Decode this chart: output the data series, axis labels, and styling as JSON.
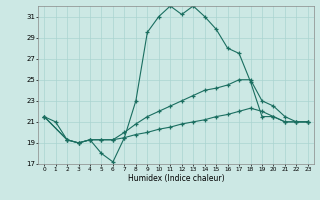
{
  "xlabel": "Humidex (Indice chaleur)",
  "bg_color": "#cce8e4",
  "grid_color": "#aad4d0",
  "line_color": "#1a6e60",
  "xlim": [
    -0.5,
    23.5
  ],
  "ylim": [
    17,
    32
  ],
  "xticks": [
    0,
    1,
    2,
    3,
    4,
    5,
    6,
    7,
    8,
    9,
    10,
    11,
    12,
    13,
    14,
    15,
    16,
    17,
    18,
    19,
    20,
    21,
    22,
    23
  ],
  "yticks": [
    17,
    19,
    21,
    23,
    25,
    27,
    29,
    31
  ],
  "series": [
    {
      "x": [
        0,
        1,
        2,
        3,
        4,
        5,
        6,
        7,
        8,
        9,
        10,
        11,
        12,
        13,
        14,
        15,
        16,
        17,
        18,
        19,
        20,
        21,
        22,
        23
      ],
      "y": [
        21.5,
        21.0,
        19.3,
        19.0,
        19.3,
        18.0,
        17.2,
        19.5,
        23.0,
        29.5,
        31.0,
        32.0,
        31.2,
        32.0,
        31.0,
        29.8,
        28.0,
        27.5,
        24.8,
        21.5,
        21.5,
        21.0,
        21.0,
        21.0
      ]
    },
    {
      "x": [
        0,
        2,
        3,
        4,
        5,
        6,
        7,
        8,
        9,
        10,
        11,
        12,
        13,
        14,
        15,
        16,
        17,
        18,
        19,
        20,
        21,
        22,
        23
      ],
      "y": [
        21.5,
        19.3,
        19.0,
        19.3,
        19.3,
        19.3,
        20.0,
        20.8,
        21.5,
        22.0,
        22.5,
        23.0,
        23.5,
        24.0,
        24.2,
        24.5,
        25.0,
        25.0,
        23.0,
        22.5,
        21.5,
        21.0,
        21.0
      ]
    },
    {
      "x": [
        0,
        2,
        3,
        4,
        5,
        6,
        7,
        8,
        9,
        10,
        11,
        12,
        13,
        14,
        15,
        16,
        17,
        18,
        19,
        20,
        21,
        22,
        23
      ],
      "y": [
        21.5,
        19.3,
        19.0,
        19.3,
        19.3,
        19.3,
        19.5,
        19.8,
        20.0,
        20.3,
        20.5,
        20.8,
        21.0,
        21.2,
        21.5,
        21.7,
        22.0,
        22.3,
        22.0,
        21.5,
        21.0,
        21.0,
        21.0
      ]
    }
  ]
}
